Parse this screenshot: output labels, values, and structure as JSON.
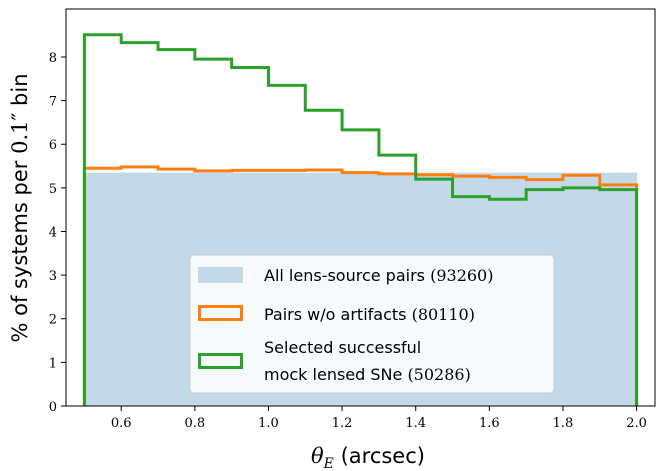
{
  "chart_data": {
    "type": "histogram",
    "xlabel": "θ_E (arcsec)",
    "ylabel": "% of systems per 0.1″ bin",
    "xlim": [
      0.45,
      2.05
    ],
    "ylim": [
      0,
      9.1
    ],
    "xticks": [
      "0.6",
      "0.8",
      "1.0",
      "1.2",
      "1.4",
      "1.6",
      "1.8",
      "2.0"
    ],
    "yticks": [
      "0",
      "1",
      "2",
      "3",
      "4",
      "5",
      "6",
      "7",
      "8"
    ],
    "bin_edges": [
      0.5,
      0.6,
      0.7,
      0.8,
      0.9,
      1.0,
      1.1,
      1.2,
      1.3,
      1.4,
      1.5,
      1.6,
      1.7,
      1.8,
      1.9,
      2.0
    ],
    "legend_position": "lower-center",
    "series": [
      {
        "name": "All lens-source pairs",
        "count": "93260",
        "style": "filled",
        "color": "#c4d9e8",
        "values": [
          5.35,
          5.35,
          5.35,
          5.35,
          5.35,
          5.35,
          5.35,
          5.35,
          5.35,
          5.35,
          5.35,
          5.35,
          5.35,
          5.35,
          5.35
        ]
      },
      {
        "name": "Pairs w/o artifacts",
        "count": "80110",
        "style": "step",
        "color": "#ff7f0e",
        "values": [
          5.45,
          5.48,
          5.43,
          5.39,
          5.4,
          5.4,
          5.41,
          5.35,
          5.32,
          5.3,
          5.27,
          5.24,
          5.19,
          5.29,
          5.07
        ]
      },
      {
        "name": "Selected successful mock lensed SNe",
        "count": "50286",
        "style": "step",
        "color": "#2ca02c",
        "values": [
          8.51,
          8.33,
          8.17,
          7.95,
          7.76,
          7.35,
          6.78,
          6.33,
          5.75,
          5.2,
          4.8,
          4.74,
          4.96,
          5.0,
          4.96
        ]
      }
    ]
  },
  "legend": {
    "items": [
      {
        "line1": "All lens-source pairs",
        "count": "(93260)"
      },
      {
        "line1": "Pairs w/o artifacts",
        "count": "(80110)"
      },
      {
        "line1": "Selected successful",
        "line2": "mock lensed SNe",
        "count": "(50286)"
      }
    ]
  }
}
